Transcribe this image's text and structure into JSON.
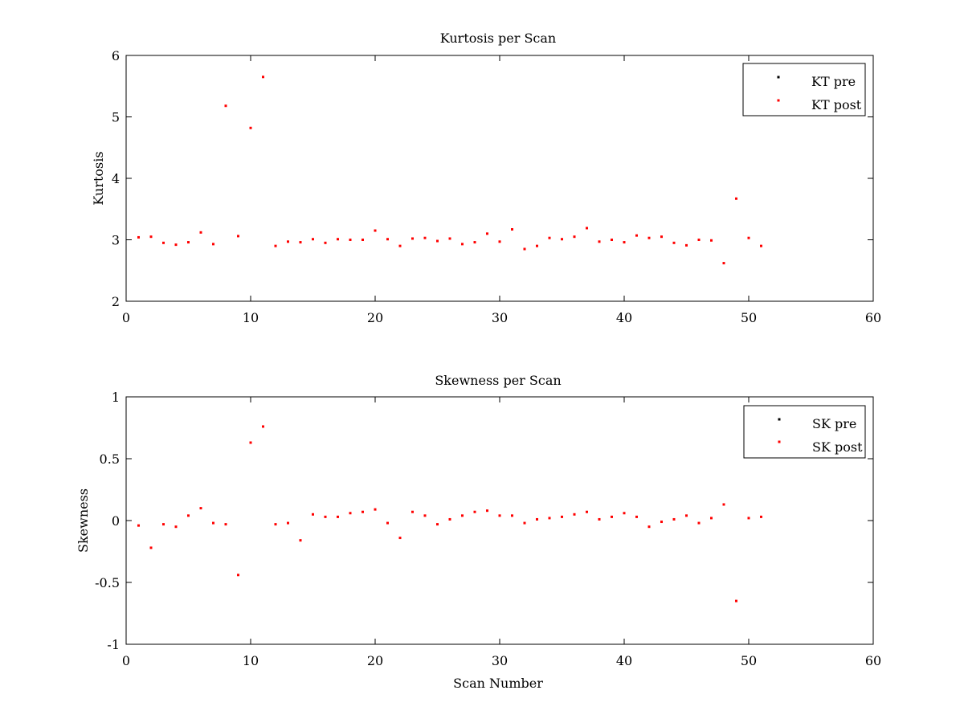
{
  "chart_data": [
    {
      "type": "scatter",
      "title": "Kurtosis per Scan",
      "xlabel": "",
      "ylabel": "Kurtosis",
      "xlim": [
        0,
        60
      ],
      "ylim": [
        2,
        6
      ],
      "xticks": [
        "0",
        "10",
        "20",
        "30",
        "40",
        "50",
        "60"
      ],
      "yticks": [
        "2",
        "3",
        "4",
        "5",
        "6"
      ],
      "grid": false,
      "legend_position": "top-right",
      "series": [
        {
          "name": "KT pre",
          "color": "#000000",
          "x": [],
          "y": []
        },
        {
          "name": "KT post",
          "color": "#ff0000",
          "x": [
            1,
            2,
            3,
            4,
            5,
            6,
            7,
            8,
            9,
            10,
            11,
            12,
            13,
            14,
            15,
            16,
            17,
            18,
            19,
            20,
            21,
            22,
            23,
            24,
            25,
            26,
            27,
            28,
            29,
            30,
            31,
            32,
            33,
            34,
            35,
            36,
            37,
            38,
            39,
            40,
            41,
            42,
            43,
            44,
            45,
            46,
            47,
            48,
            49,
            50,
            51
          ],
          "y": [
            3.04,
            3.05,
            2.95,
            2.92,
            2.96,
            3.12,
            2.93,
            5.18,
            3.06,
            4.82,
            5.65,
            2.9,
            2.97,
            2.96,
            3.01,
            2.95,
            3.01,
            3.0,
            3.0,
            3.15,
            3.01,
            2.9,
            3.02,
            3.03,
            2.98,
            3.02,
            2.93,
            2.96,
            3.1,
            2.97,
            3.17,
            2.85,
            2.9,
            3.03,
            3.01,
            3.05,
            3.19,
            2.97,
            3.0,
            2.96,
            3.07,
            3.03,
            3.05,
            2.95,
            2.91,
            3.0,
            2.99,
            2.62,
            3.67,
            3.03,
            2.9
          ]
        }
      ]
    },
    {
      "type": "scatter",
      "title": "Skewness per Scan",
      "xlabel": "Scan Number",
      "ylabel": "Skewness",
      "xlim": [
        0,
        60
      ],
      "ylim": [
        -1,
        1
      ],
      "xticks": [
        "0",
        "10",
        "20",
        "30",
        "40",
        "50",
        "60"
      ],
      "yticks": [
        "-1",
        "-0.5",
        "0",
        "0.5",
        "1"
      ],
      "grid": false,
      "legend_position": "top-right",
      "series": [
        {
          "name": "SK pre",
          "color": "#000000",
          "x": [],
          "y": []
        },
        {
          "name": "SK post",
          "color": "#ff0000",
          "x": [
            1,
            2,
            3,
            4,
            5,
            6,
            7,
            8,
            9,
            10,
            11,
            12,
            13,
            14,
            15,
            16,
            17,
            18,
            19,
            20,
            21,
            22,
            23,
            24,
            25,
            26,
            27,
            28,
            29,
            30,
            31,
            32,
            33,
            34,
            35,
            36,
            37,
            38,
            39,
            40,
            41,
            42,
            43,
            44,
            45,
            46,
            47,
            48,
            49,
            50,
            51
          ],
          "y": [
            -0.04,
            -0.22,
            -0.03,
            -0.05,
            0.04,
            0.1,
            -0.02,
            -0.03,
            -0.44,
            0.63,
            0.76,
            -0.03,
            -0.02,
            -0.16,
            0.05,
            0.03,
            0.03,
            0.06,
            0.07,
            0.09,
            -0.02,
            -0.14,
            0.07,
            0.04,
            -0.03,
            0.01,
            0.04,
            0.07,
            0.08,
            0.04,
            0.04,
            -0.02,
            0.01,
            0.02,
            0.03,
            0.05,
            0.07,
            0.01,
            0.03,
            0.06,
            0.03,
            -0.05,
            -0.01,
            0.01,
            0.04,
            -0.02,
            0.02,
            0.13,
            -0.65,
            0.02,
            0.03
          ]
        }
      ]
    }
  ]
}
